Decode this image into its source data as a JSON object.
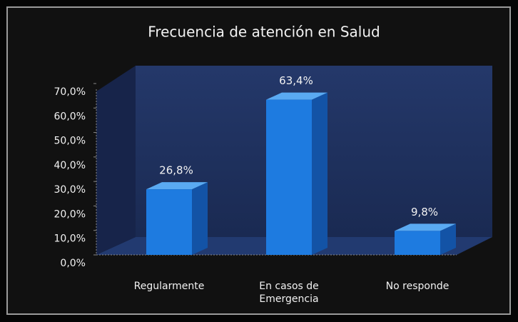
{
  "chart_data": {
    "type": "bar",
    "title": "Frecuencia de atención en Salud",
    "categories": [
      "Regularmente",
      "En casos de Emergencia",
      "No responde"
    ],
    "values": [
      26.8,
      63.4,
      9.8
    ],
    "value_labels": [
      "26,8%",
      "63,4%",
      "9,8%"
    ],
    "color": "#1e7be0",
    "ylim": [
      0,
      70
    ],
    "yticks": [
      {
        "value": 0,
        "label": "0,0%"
      },
      {
        "value": 10,
        "label": "10,0%"
      },
      {
        "value": 20,
        "label": "20,0%"
      },
      {
        "value": 30,
        "label": "30,0%"
      },
      {
        "value": 40,
        "label": "40,0%"
      },
      {
        "value": 50,
        "label": "50,0%"
      },
      {
        "value": 60,
        "label": "60,0%"
      },
      {
        "value": 70,
        "label": "70,0%"
      }
    ]
  }
}
